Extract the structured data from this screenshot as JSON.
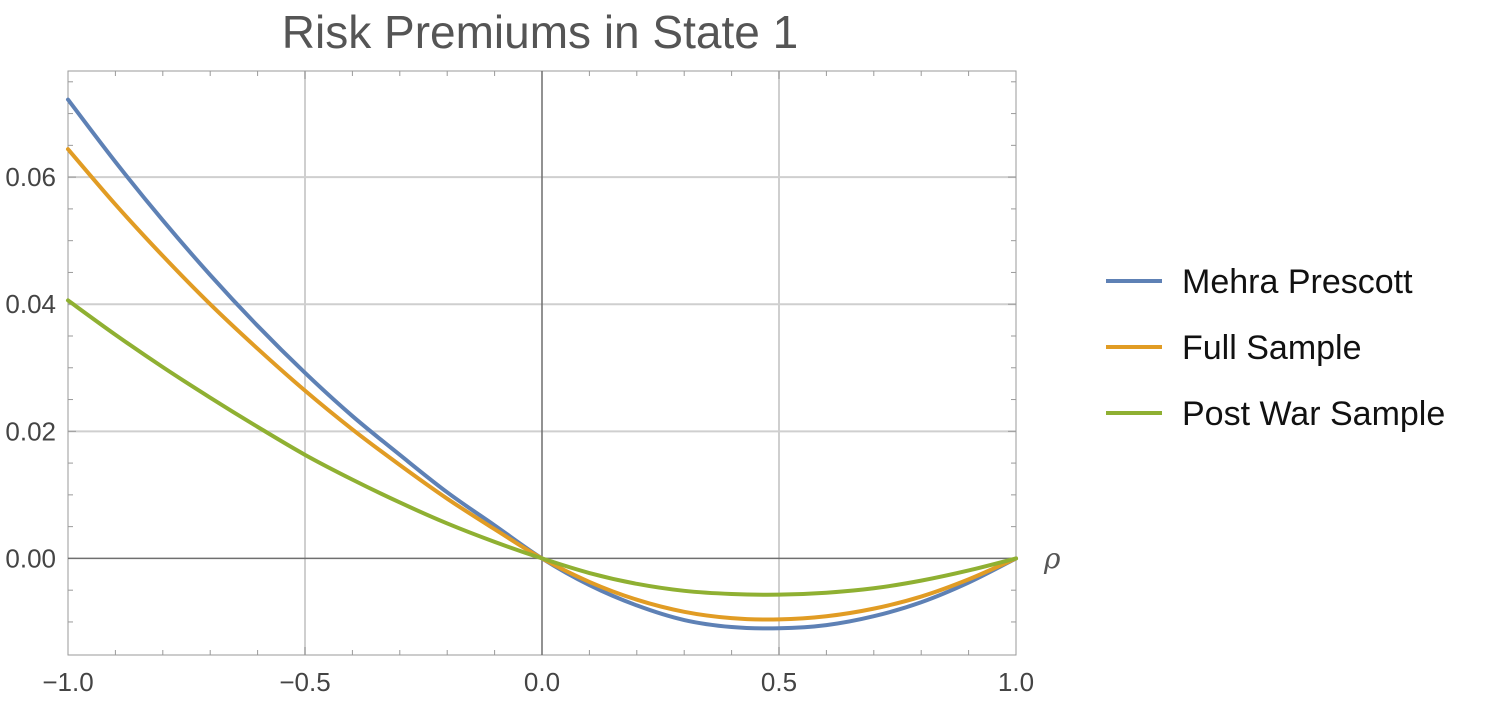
{
  "chart_data": {
    "type": "line",
    "title": "Risk Premiums in State 1",
    "xlabel": "ρ",
    "ylabel": "",
    "xlim": [
      -1.0,
      1.0
    ],
    "ylim": [
      -0.0152,
      0.0767
    ],
    "x_ticks": [
      -1.0,
      -0.5,
      0.0,
      0.5,
      1.0
    ],
    "x_tick_labels": [
      "−1.0",
      "−0.5",
      "0.0",
      "0.5",
      "1.0"
    ],
    "y_ticks": [
      0.0,
      0.02,
      0.04,
      0.06
    ],
    "y_tick_labels": [
      "0.00",
      "0.02",
      "0.04",
      "0.06"
    ],
    "grid": true,
    "legend_position": "right",
    "series": [
      {
        "name": "Mehra Prescott",
        "color": "#5E81B5",
        "x": [
          -1.0,
          -0.9,
          -0.8,
          -0.7,
          -0.6,
          -0.5,
          -0.4,
          -0.3,
          -0.2,
          -0.1,
          0.0,
          0.1,
          0.2,
          0.3,
          0.4,
          0.5,
          0.6,
          0.7,
          0.8,
          0.9,
          1.0
        ],
        "y": [
          0.0722,
          0.0624,
          0.0532,
          0.0446,
          0.0366,
          0.0292,
          0.0224,
          0.0163,
          0.0104,
          0.0052,
          0.0,
          -0.0042,
          -0.0074,
          -0.0097,
          -0.0108,
          -0.011,
          -0.0105,
          -0.0091,
          -0.0069,
          -0.0038,
          0.0
        ]
      },
      {
        "name": "Full Sample",
        "color": "#E19C24",
        "x": [
          -1.0,
          -0.9,
          -0.8,
          -0.7,
          -0.6,
          -0.5,
          -0.4,
          -0.3,
          -0.2,
          -0.1,
          0.0,
          0.1,
          0.2,
          0.3,
          0.4,
          0.5,
          0.6,
          0.7,
          0.8,
          0.9,
          1.0
        ],
        "y": [
          0.0644,
          0.0557,
          0.0476,
          0.04,
          0.033,
          0.0264,
          0.0203,
          0.0147,
          0.0094,
          0.0046,
          0.0,
          -0.0037,
          -0.0065,
          -0.0084,
          -0.0094,
          -0.0096,
          -0.0091,
          -0.0079,
          -0.006,
          -0.0033,
          0.0
        ]
      },
      {
        "name": "Post War Sample",
        "color": "#8FB032",
        "x": [
          -1.0,
          -0.9,
          -0.8,
          -0.7,
          -0.6,
          -0.5,
          -0.4,
          -0.3,
          -0.2,
          -0.1,
          0.0,
          0.1,
          0.2,
          0.3,
          0.4,
          0.5,
          0.6,
          0.7,
          0.8,
          0.9,
          1.0
        ],
        "y": [
          0.0406,
          0.0352,
          0.0301,
          0.0253,
          0.0207,
          0.0163,
          0.0124,
          0.0088,
          0.0055,
          0.0026,
          0.0,
          -0.0023,
          -0.004,
          -0.0051,
          -0.0056,
          -0.0057,
          -0.0054,
          -0.0047,
          -0.0035,
          -0.0019,
          0.0
        ]
      }
    ]
  }
}
